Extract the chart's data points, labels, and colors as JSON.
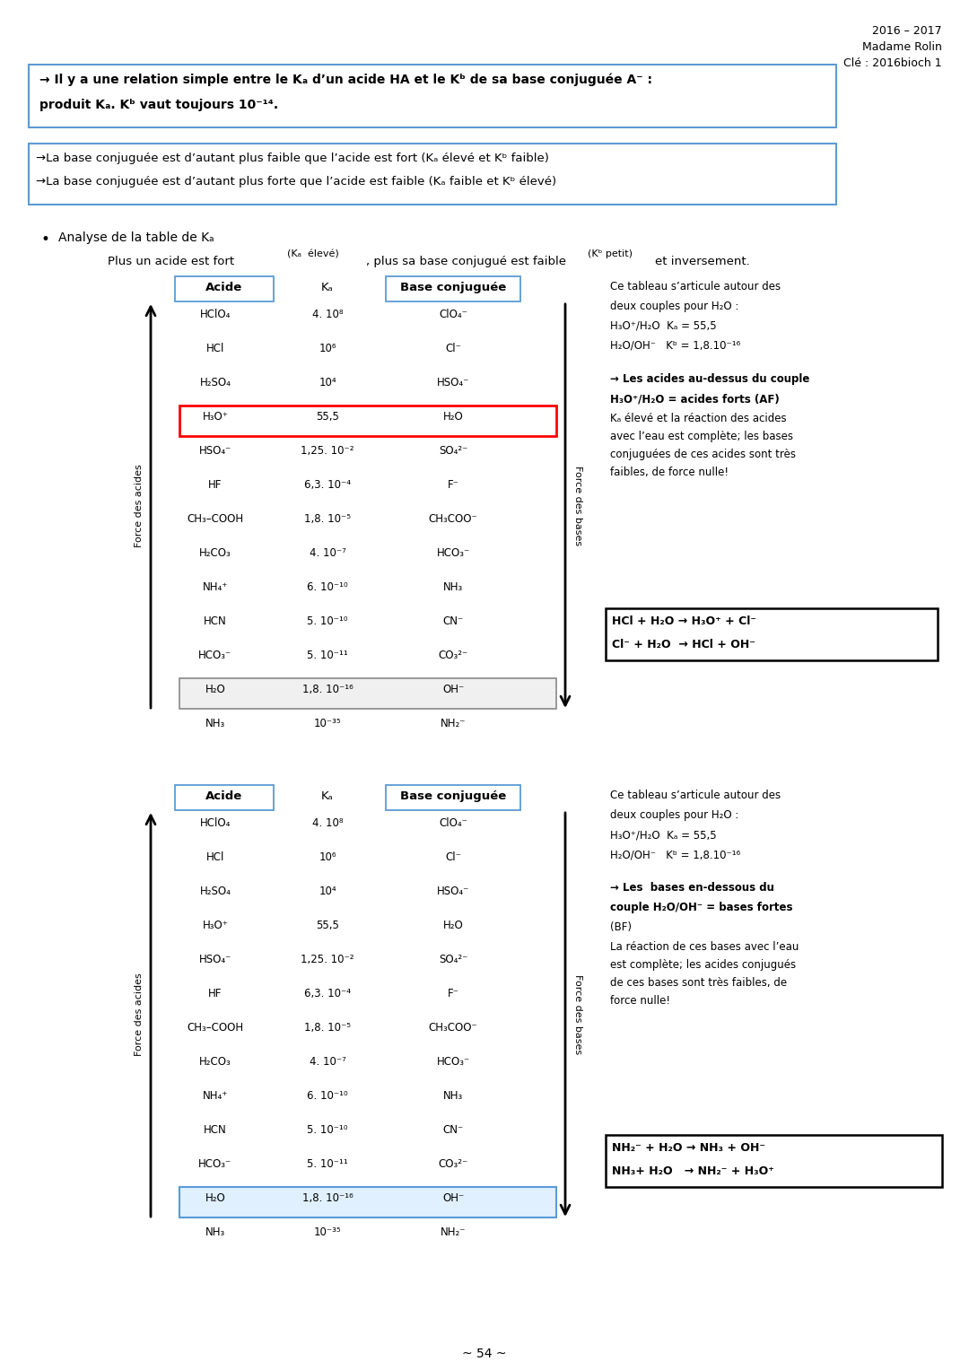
{
  "page_width": 10.8,
  "page_height": 15.27,
  "bg_color": "#ffffff",
  "header_right": [
    "2016 – 2017",
    "Madame Rolin",
    "Clé : 2016bioch 1"
  ],
  "box1_line1": "→ Il y a une relation simple entre le Kₐ d’un acide HA et le Kᵇ de sa base conjuguée A⁻ :",
  "box1_line2": "produit Kₐ. Kᵇ vaut toujours 10⁻¹⁴.",
  "box2_line1": "→La base conjuguée est d’autant plus faible que l’acide est fort (Kₐ élevé et Kᵇ faible)",
  "box2_line2": "→La base conjuguée est d’autant plus forte que l’acide est faible (Kₐ faible et Kᵇ élevé)",
  "bullet_text": "Analyse de la table de Kₐ",
  "subtitle_a": "Plus un acide est fort ",
  "subtitle_b": "(Kₐ  élevé)",
  "subtitle_c": ", plus sa base conjugué est faible ",
  "subtitle_d": "(Kᵇ petit)",
  "subtitle_e": "et inversement.",
  "acide_col": [
    "HClO₄",
    "HCl",
    "H₂SO₄",
    "H₃O⁺",
    "HSO₄⁻",
    "HF",
    "CH₃–COOH",
    "H₂CO₃",
    "NH₄⁺",
    "HCN",
    "HCO₃⁻",
    "H₂O",
    "NH₃"
  ],
  "ka_col": [
    "4. 10⁸",
    "10⁶",
    "10⁴",
    "55,5",
    "1,25. 10⁻²",
    "6,3. 10⁻⁴",
    "1,8. 10⁻⁵",
    "4. 10⁻⁷",
    "6. 10⁻¹⁰",
    "5. 10⁻¹⁰",
    "5. 10⁻¹¹",
    "1,8. 10⁻¹⁶",
    "10⁻³⁵"
  ],
  "base_col": [
    "ClO₄⁻",
    "Cl⁻",
    "HSO₄⁻",
    "H₂O",
    "SO₄²⁻",
    "F⁻",
    "CH₃COO⁻",
    "HCO₃⁻",
    "NH₃",
    "CN⁻",
    "CO₃²⁻",
    "OH⁻",
    "NH₂⁻"
  ],
  "right1_lines": [
    "Ce tableau s’articule autour des",
    "deux couples pour H₂O :",
    "H₃O⁺/H₂O  Kₐ = 55,5",
    "H₂O/OH⁻   Kᵇ = 1,8.10⁻¹⁶"
  ],
  "right1_bold1": "→ Les acides au-dessus du couple",
  "right1_bold2": "H₃O⁺/H₂O = acides forts (AF)",
  "right1_normal": [
    "Kₐ élevé et la réaction des acides",
    "avec l’eau est complète; les bases",
    "conjuguées de ces acides sont très",
    "faibles, de force nulle!"
  ],
  "rxn1_lines": [
    "HCl + H₂O → H₃O⁺ + Cl⁻",
    "Cl⁻ + H₂O  → HCl + OH⁻"
  ],
  "right2_lines": [
    "Ce tableau s’articule autour des",
    "deux couples pour H₂O :",
    "H₃O⁺/H₂O  Kₐ = 55,5",
    "H₂O/OH⁻   Kᵇ = 1,8.10⁻¹⁶"
  ],
  "right2_bold1": "→ Les  bases en-dessous du",
  "right2_bold2": "couple H₂O/OH⁻ = bases fortes",
  "right2_bold3": "(BF)",
  "right2_normal": [
    "La réaction de ces bases avec l’eau",
    "est complète; les acides conjugués",
    "de ces bases sont très faibles, de",
    "force nulle!"
  ],
  "rxn2_lines": [
    "NH₂⁻ + H₂O → NH₃ + OH⁻",
    "NH₃+ H₂O   → NH₂⁻ + H₃O⁺"
  ],
  "footer": "~ 54 ~",
  "highlight1_row": 3,
  "highlight2_row": 11
}
